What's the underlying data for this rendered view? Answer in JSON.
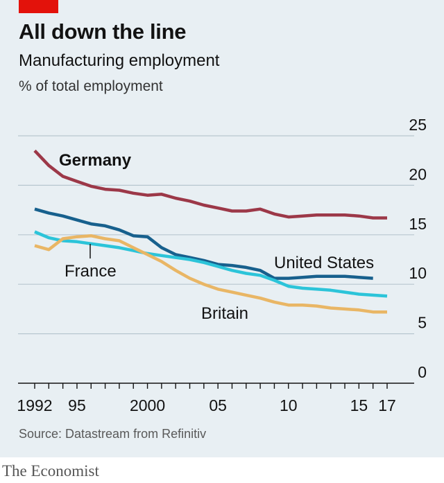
{
  "header": {
    "title": "All down the line",
    "subtitle": "Manufacturing employment",
    "unit": "% of total employment"
  },
  "source": "Source: Datastream from Refinitiv",
  "footer": {
    "brand": "The Economist"
  },
  "colors": {
    "background": "#e8eff3",
    "brand_red": "#e3120b",
    "Germany": "#9c3848",
    "United States": "#17608d",
    "France": "#2cc4d9",
    "Britain": "#e9b665"
  },
  "chart_data": {
    "type": "line",
    "title": "All down the line",
    "subtitle": "Manufacturing employment",
    "ylabel": "% of total employment",
    "xlim": [
      1992,
      2017
    ],
    "ylim": [
      0,
      25
    ],
    "yticks": [
      0,
      5,
      10,
      15,
      20,
      25
    ],
    "y_axis_side": "right",
    "xtick_labels": [
      {
        "x": 1992,
        "label": "1992"
      },
      {
        "x": 1995,
        "label": "95"
      },
      {
        "x": 2000,
        "label": "2000"
      },
      {
        "x": 2005,
        "label": "05"
      },
      {
        "x": 2010,
        "label": "10"
      },
      {
        "x": 2015,
        "label": "15"
      },
      {
        "x": 2017,
        "label": "17"
      }
    ],
    "grid": true,
    "x": [
      1992,
      1993,
      1994,
      1995,
      1996,
      1997,
      1998,
      1999,
      2000,
      2001,
      2002,
      2003,
      2004,
      2005,
      2006,
      2007,
      2008,
      2009,
      2010,
      2011,
      2012,
      2013,
      2014,
      2015,
      2016,
      2017
    ],
    "series": [
      {
        "name": "Germany",
        "values": [
          23.5,
          22.0,
          20.9,
          20.4,
          19.9,
          19.6,
          19.5,
          19.2,
          19.0,
          19.1,
          18.7,
          18.4,
          18.0,
          17.7,
          17.4,
          17.4,
          17.6,
          17.1,
          16.8,
          16.9,
          17.0,
          17.0,
          17.0,
          16.9,
          16.7,
          16.7
        ]
      },
      {
        "name": "United States",
        "values": [
          17.6,
          17.2,
          16.9,
          16.5,
          16.1,
          15.9,
          15.5,
          14.9,
          14.8,
          13.7,
          13.0,
          12.7,
          12.4,
          12.0,
          11.9,
          11.7,
          11.4,
          10.6,
          10.6,
          10.7,
          10.8,
          10.8,
          10.8,
          10.7,
          10.6,
          null
        ]
      },
      {
        "name": "France",
        "values": [
          15.3,
          14.7,
          14.4,
          14.3,
          14.1,
          13.9,
          13.7,
          13.4,
          13.1,
          12.9,
          12.7,
          12.5,
          12.2,
          11.8,
          11.4,
          11.1,
          10.9,
          10.4,
          9.8,
          9.6,
          9.5,
          9.4,
          9.2,
          9.0,
          8.9,
          8.8
        ]
      },
      {
        "name": "Britain",
        "values": [
          13.9,
          13.5,
          14.6,
          14.8,
          14.9,
          14.6,
          14.4,
          13.7,
          13.0,
          12.3,
          11.4,
          10.6,
          10.0,
          9.5,
          9.2,
          8.9,
          8.6,
          8.2,
          7.9,
          7.9,
          7.8,
          7.6,
          7.5,
          7.4,
          7.2,
          7.2
        ]
      }
    ],
    "annotations": [
      {
        "text": "Germany",
        "series": "Germany"
      },
      {
        "text": "United States",
        "series": "United States"
      },
      {
        "text": "France",
        "series": "France"
      },
      {
        "text": "Britain",
        "series": "Britain"
      }
    ]
  }
}
